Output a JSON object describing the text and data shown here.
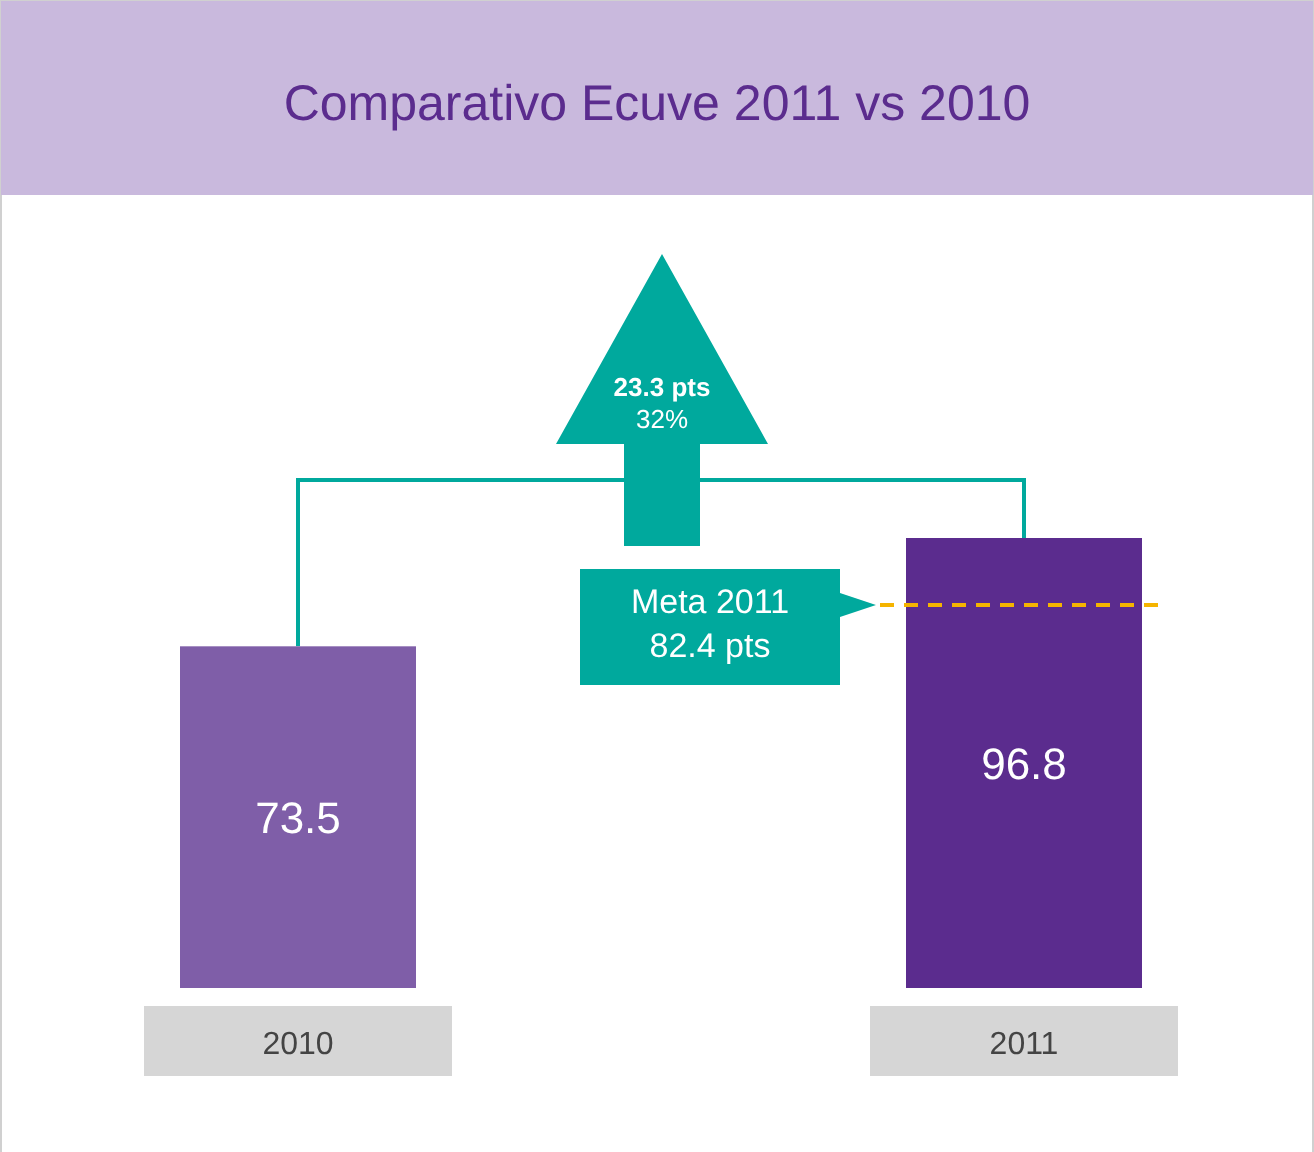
{
  "chart_data": {
    "type": "bar",
    "title": "Comparativo Ecuve 2011 vs 2010",
    "categories": [
      "2010",
      "2011"
    ],
    "values": [
      73.5,
      96.8
    ],
    "colors": [
      "#7f5ea8",
      "#5b2c8e"
    ],
    "data_labels": true,
    "ref_lines": [
      {
        "axis": "y",
        "value": 82.4,
        "label": "Meta 2011\n82.4 pts",
        "color": "#f5b400",
        "line_style": "dashed"
      }
    ],
    "annotations": [
      "23.3 pts",
      "32%"
    ]
  }
}
